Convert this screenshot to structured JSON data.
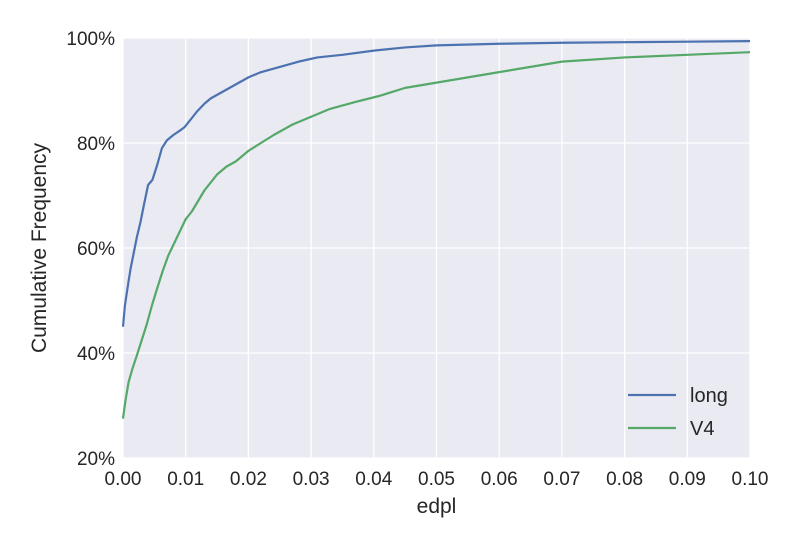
{
  "chart_data": {
    "type": "line",
    "title": "",
    "xlabel": "edpl",
    "ylabel": "Cumulative Frequency",
    "xlim": [
      0.0,
      0.1
    ],
    "ylim": [
      0.2,
      1.0
    ],
    "x_ticks": [
      "0.00",
      "0.01",
      "0.02",
      "0.03",
      "0.04",
      "0.05",
      "0.06",
      "0.07",
      "0.08",
      "0.09",
      "0.10"
    ],
    "y_ticks": [
      "20%",
      "40%",
      "60%",
      "80%",
      "100%"
    ],
    "grid": true,
    "legend_position": "lower-right",
    "series": [
      {
        "name": "long",
        "color": "#4c72b0",
        "points": [
          [
            0.0,
            0.45
          ],
          [
            0.0003,
            0.49
          ],
          [
            0.0008,
            0.53
          ],
          [
            0.0012,
            0.56
          ],
          [
            0.0017,
            0.59
          ],
          [
            0.0022,
            0.62
          ],
          [
            0.0028,
            0.65
          ],
          [
            0.0033,
            0.68
          ],
          [
            0.004,
            0.72
          ],
          [
            0.0047,
            0.73
          ],
          [
            0.0055,
            0.76
          ],
          [
            0.0062,
            0.79
          ],
          [
            0.007,
            0.805
          ],
          [
            0.008,
            0.815
          ],
          [
            0.009,
            0.823
          ],
          [
            0.0098,
            0.83
          ],
          [
            0.0108,
            0.845
          ],
          [
            0.0118,
            0.86
          ],
          [
            0.013,
            0.875
          ],
          [
            0.014,
            0.885
          ],
          [
            0.0155,
            0.895
          ],
          [
            0.017,
            0.905
          ],
          [
            0.0185,
            0.915
          ],
          [
            0.02,
            0.925
          ],
          [
            0.022,
            0.935
          ],
          [
            0.025,
            0.945
          ],
          [
            0.028,
            0.955
          ],
          [
            0.031,
            0.963
          ],
          [
            0.035,
            0.968
          ],
          [
            0.04,
            0.976
          ],
          [
            0.045,
            0.982
          ],
          [
            0.05,
            0.986
          ],
          [
            0.06,
            0.989
          ],
          [
            0.07,
            0.991
          ],
          [
            0.08,
            0.992
          ],
          [
            0.09,
            0.993
          ],
          [
            0.1,
            0.994
          ]
        ]
      },
      {
        "name": "V4",
        "color": "#55a868",
        "points": [
          [
            0.0,
            0.275
          ],
          [
            0.0004,
            0.31
          ],
          [
            0.0009,
            0.345
          ],
          [
            0.0015,
            0.37
          ],
          [
            0.0022,
            0.395
          ],
          [
            0.003,
            0.425
          ],
          [
            0.0038,
            0.455
          ],
          [
            0.0046,
            0.49
          ],
          [
            0.0055,
            0.525
          ],
          [
            0.0063,
            0.555
          ],
          [
            0.0072,
            0.585
          ],
          [
            0.008,
            0.605
          ],
          [
            0.009,
            0.63
          ],
          [
            0.01,
            0.655
          ],
          [
            0.011,
            0.67
          ],
          [
            0.012,
            0.69
          ],
          [
            0.013,
            0.71
          ],
          [
            0.014,
            0.725
          ],
          [
            0.015,
            0.74
          ],
          [
            0.0165,
            0.755
          ],
          [
            0.018,
            0.765
          ],
          [
            0.02,
            0.785
          ],
          [
            0.022,
            0.8
          ],
          [
            0.024,
            0.815
          ],
          [
            0.027,
            0.835
          ],
          [
            0.03,
            0.85
          ],
          [
            0.033,
            0.865
          ],
          [
            0.037,
            0.878
          ],
          [
            0.041,
            0.89
          ],
          [
            0.045,
            0.905
          ],
          [
            0.05,
            0.915
          ],
          [
            0.055,
            0.925
          ],
          [
            0.06,
            0.935
          ],
          [
            0.065,
            0.945
          ],
          [
            0.07,
            0.955
          ],
          [
            0.08,
            0.963
          ],
          [
            0.09,
            0.968
          ],
          [
            0.1,
            0.973
          ]
        ]
      }
    ]
  }
}
